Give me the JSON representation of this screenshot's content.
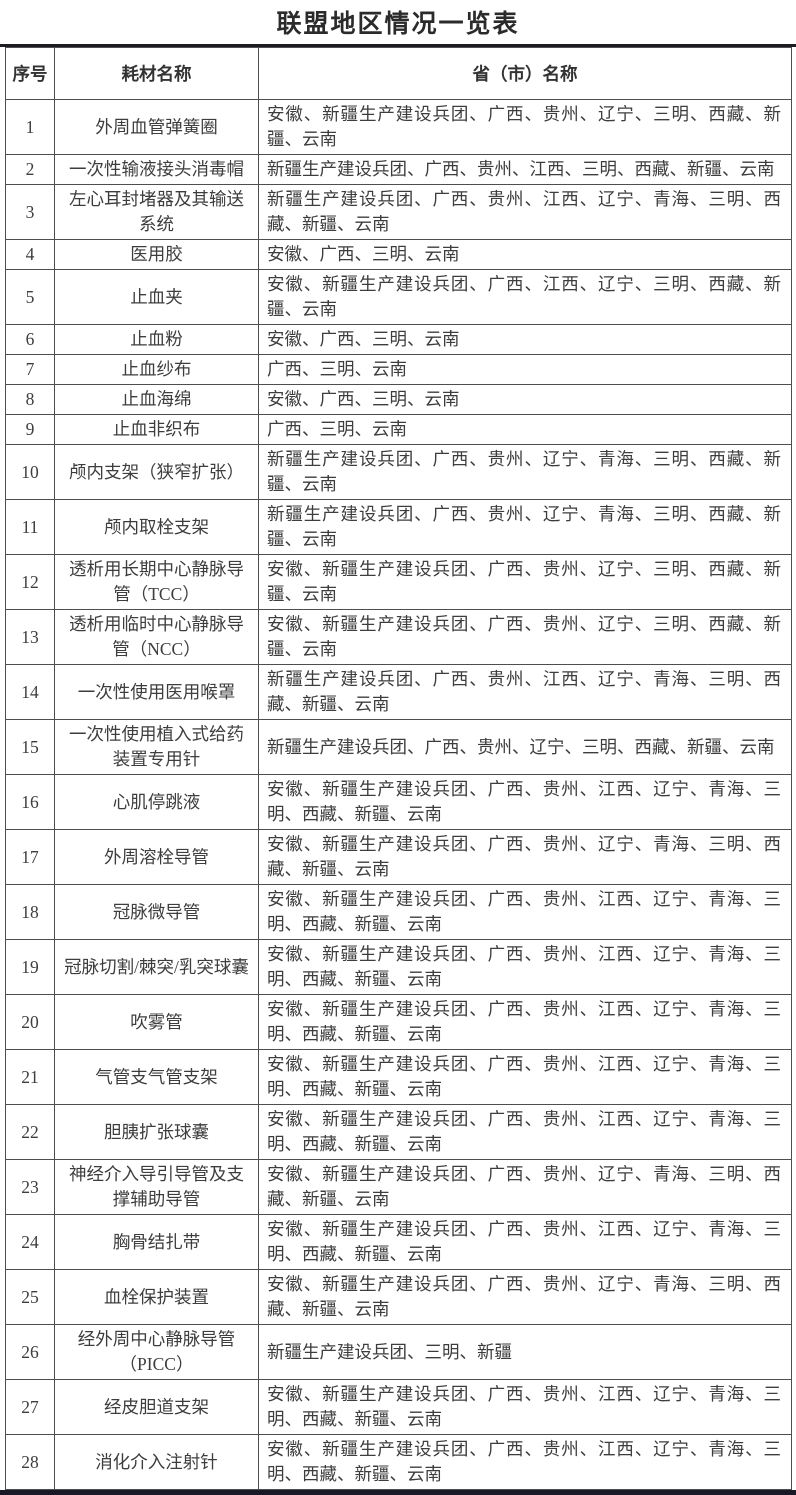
{
  "title": "联盟地区情况一览表",
  "colors": {
    "text": "#3d3d3d",
    "grid_border": "#4e4e4e",
    "top_rule": "#1c1c22",
    "bottom_rule": "#181826",
    "background": "#ffffff"
  },
  "table": {
    "headers": [
      "序号",
      "耗材名称",
      "省（市）名称"
    ],
    "rows": [
      {
        "no": "1",
        "name": "外周血管弹簧圈",
        "regions": "安徽、新疆生产建设兵团、广西、贵州、辽宁、三明、西藏、新疆、云南"
      },
      {
        "no": "2",
        "name": "一次性输液接头消毒帽",
        "regions": "新疆生产建设兵团、广西、贵州、江西、三明、西藏、新疆、云南"
      },
      {
        "no": "3",
        "name": "左心耳封堵器及其输送系统",
        "regions": "新疆生产建设兵团、广西、贵州、江西、辽宁、青海、三明、西藏、新疆、云南"
      },
      {
        "no": "4",
        "name": "医用胶",
        "regions": "安徽、广西、三明、云南"
      },
      {
        "no": "5",
        "name": "止血夹",
        "regions": "安徽、新疆生产建设兵团、广西、江西、辽宁、三明、西藏、新疆、云南"
      },
      {
        "no": "6",
        "name": "止血粉",
        "regions": "安徽、广西、三明、云南"
      },
      {
        "no": "7",
        "name": "止血纱布",
        "regions": "广西、三明、云南"
      },
      {
        "no": "8",
        "name": "止血海绵",
        "regions": "安徽、广西、三明、云南"
      },
      {
        "no": "9",
        "name": "止血非织布",
        "regions": "广西、三明、云南"
      },
      {
        "no": "10",
        "name": "颅内支架（狭窄扩张）",
        "regions": "新疆生产建设兵团、广西、贵州、辽宁、青海、三明、西藏、新疆、云南"
      },
      {
        "no": "11",
        "name": "颅内取栓支架",
        "regions": "新疆生产建设兵团、广西、贵州、辽宁、青海、三明、西藏、新疆、云南"
      },
      {
        "no": "12",
        "name": "透析用长期中心静脉导管（TCC）",
        "regions": "安徽、新疆生产建设兵团、广西、贵州、辽宁、三明、西藏、新疆、云南"
      },
      {
        "no": "13",
        "name": "透析用临时中心静脉导管（NCC）",
        "regions": "安徽、新疆生产建设兵团、广西、贵州、辽宁、三明、西藏、新疆、云南"
      },
      {
        "no": "14",
        "name": "一次性使用医用喉罩",
        "regions": "新疆生产建设兵团、广西、贵州、江西、辽宁、青海、三明、西藏、新疆、云南"
      },
      {
        "no": "15",
        "name": "一次性使用植入式给药装置专用针",
        "regions": "新疆生产建设兵团、广西、贵州、辽宁、三明、西藏、新疆、云南"
      },
      {
        "no": "16",
        "name": "心肌停跳液",
        "regions": "安徽、新疆生产建设兵团、广西、贵州、江西、辽宁、青海、三明、西藏、新疆、云南"
      },
      {
        "no": "17",
        "name": "外周溶栓导管",
        "regions": "安徽、新疆生产建设兵团、广西、贵州、辽宁、青海、三明、西藏、新疆、云南"
      },
      {
        "no": "18",
        "name": "冠脉微导管",
        "regions": "安徽、新疆生产建设兵团、广西、贵州、江西、辽宁、青海、三明、西藏、新疆、云南"
      },
      {
        "no": "19",
        "name": "冠脉切割/棘突/乳突球囊",
        "regions": "安徽、新疆生产建设兵团、广西、贵州、江西、辽宁、青海、三明、西藏、新疆、云南"
      },
      {
        "no": "20",
        "name": "吹雾管",
        "regions": "安徽、新疆生产建设兵团、广西、贵州、江西、辽宁、青海、三明、西藏、新疆、云南"
      },
      {
        "no": "21",
        "name": "气管支气管支架",
        "regions": "安徽、新疆生产建设兵团、广西、贵州、江西、辽宁、青海、三明、西藏、新疆、云南"
      },
      {
        "no": "22",
        "name": "胆胰扩张球囊",
        "regions": "安徽、新疆生产建设兵团、广西、贵州、江西、辽宁、青海、三明、西藏、新疆、云南"
      },
      {
        "no": "23",
        "name": "神经介入导引导管及支撑辅助导管",
        "regions": "安徽、新疆生产建设兵团、广西、贵州、辽宁、青海、三明、西藏、新疆、云南"
      },
      {
        "no": "24",
        "name": "胸骨结扎带",
        "regions": "安徽、新疆生产建设兵团、广西、贵州、江西、辽宁、青海、三明、西藏、新疆、云南"
      },
      {
        "no": "25",
        "name": "血栓保护装置",
        "regions": "安徽、新疆生产建设兵团、广西、贵州、辽宁、青海、三明、西藏、新疆、云南"
      },
      {
        "no": "26",
        "name": "经外周中心静脉导管（PICC）",
        "regions": "新疆生产建设兵团、三明、新疆"
      },
      {
        "no": "27",
        "name": "经皮胆道支架",
        "regions": "安徽、新疆生产建设兵团、广西、贵州、江西、辽宁、青海、三明、西藏、新疆、云南"
      },
      {
        "no": "28",
        "name": "消化介入注射针",
        "regions": "安徽、新疆生产建设兵团、广西、贵州、江西、辽宁、青海、三明、西藏、新疆、云南"
      }
    ]
  }
}
